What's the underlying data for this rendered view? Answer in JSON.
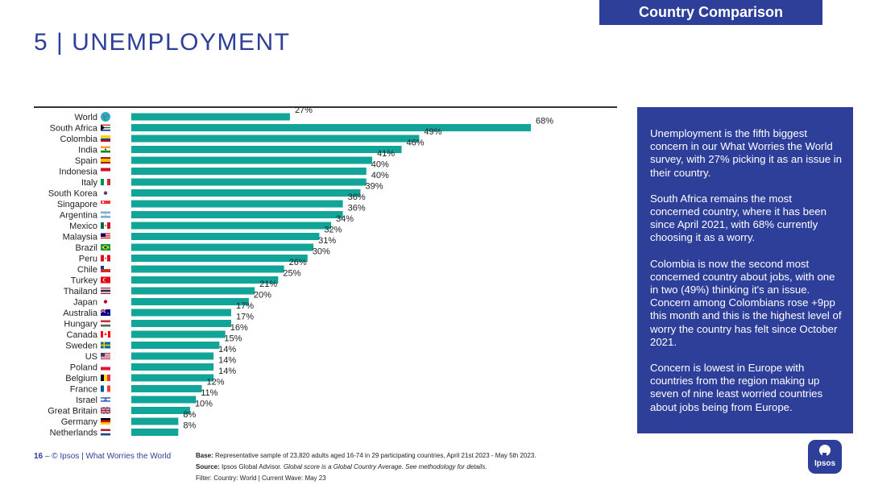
{
  "header": {
    "section_tag": "Country Comparison",
    "title": "5 | UNEMPLOYMENT"
  },
  "chart_data": {
    "type": "bar",
    "orientation": "horizontal",
    "value_suffix": "%",
    "xlim": [
      0,
      68
    ],
    "bar_color": "#11a59a",
    "categories": [
      "World",
      "South Africa",
      "Colombia",
      "India",
      "Spain",
      "Indonesia",
      "Italy",
      "South Korea",
      "Singapore",
      "Argentina",
      "Mexico",
      "Malaysia",
      "Brazil",
      "Peru",
      "Chile",
      "Turkey",
      "Thailand",
      "Japan",
      "Australia",
      "Hungary",
      "Canada",
      "Sweden",
      "US",
      "Poland",
      "Belgium",
      "France",
      "Israel",
      "Great Britain",
      "Germany",
      "Netherlands"
    ],
    "values": [
      27,
      68,
      49,
      46,
      41,
      40,
      40,
      39,
      36,
      36,
      34,
      32,
      31,
      30,
      26,
      25,
      21,
      20,
      17,
      17,
      16,
      15,
      14,
      14,
      14,
      12,
      11,
      10,
      8,
      8
    ],
    "flags": [
      "globe",
      "za",
      "co",
      "in",
      "es",
      "id",
      "it",
      "kr",
      "sg",
      "ar",
      "mx",
      "my",
      "br",
      "pe",
      "cl",
      "tr",
      "th",
      "jp",
      "au",
      "hu",
      "ca",
      "se",
      "us",
      "pl",
      "be",
      "fr",
      "il",
      "gb",
      "de",
      "nl"
    ]
  },
  "sidebar": {
    "paragraphs": [
      "Unemployment is the fifth biggest concern in our What Worries the World survey, with 27% picking it as an issue in their country.",
      "South Africa remains the most concerned country, where it has been since April 2021, with 68% currently choosing it as a worry.",
      "Colombia is now the second most concerned country about jobs, with one in two (49%) thinking it's an issue. Concern among Colombians rose +9pp this month and this is the highest level of worry the country has felt since October 2021.",
      "Concern is lowest in Europe with countries from the region making up seven of nine least worried countries about jobs being from Europe."
    ]
  },
  "footer": {
    "page_number": "16",
    "page_separator": " – ",
    "brand": "© Ipsos | What Worries the World",
    "base_label": "Base:",
    "base_text": " Representative sample of 23,820 adults aged 16-74 in 29 participating countries, April 21st 2023 - May 5th 2023.",
    "source_label": "Source:",
    "source_text": " Ipsos Global Advisor. ",
    "source_note": "Global score is a Global Country Average. See methodology for details.",
    "filter": "Filter: Country: World | Current Wave: May 23"
  },
  "logo": {
    "text": "Ipsos",
    "color": "#2d3f99"
  }
}
